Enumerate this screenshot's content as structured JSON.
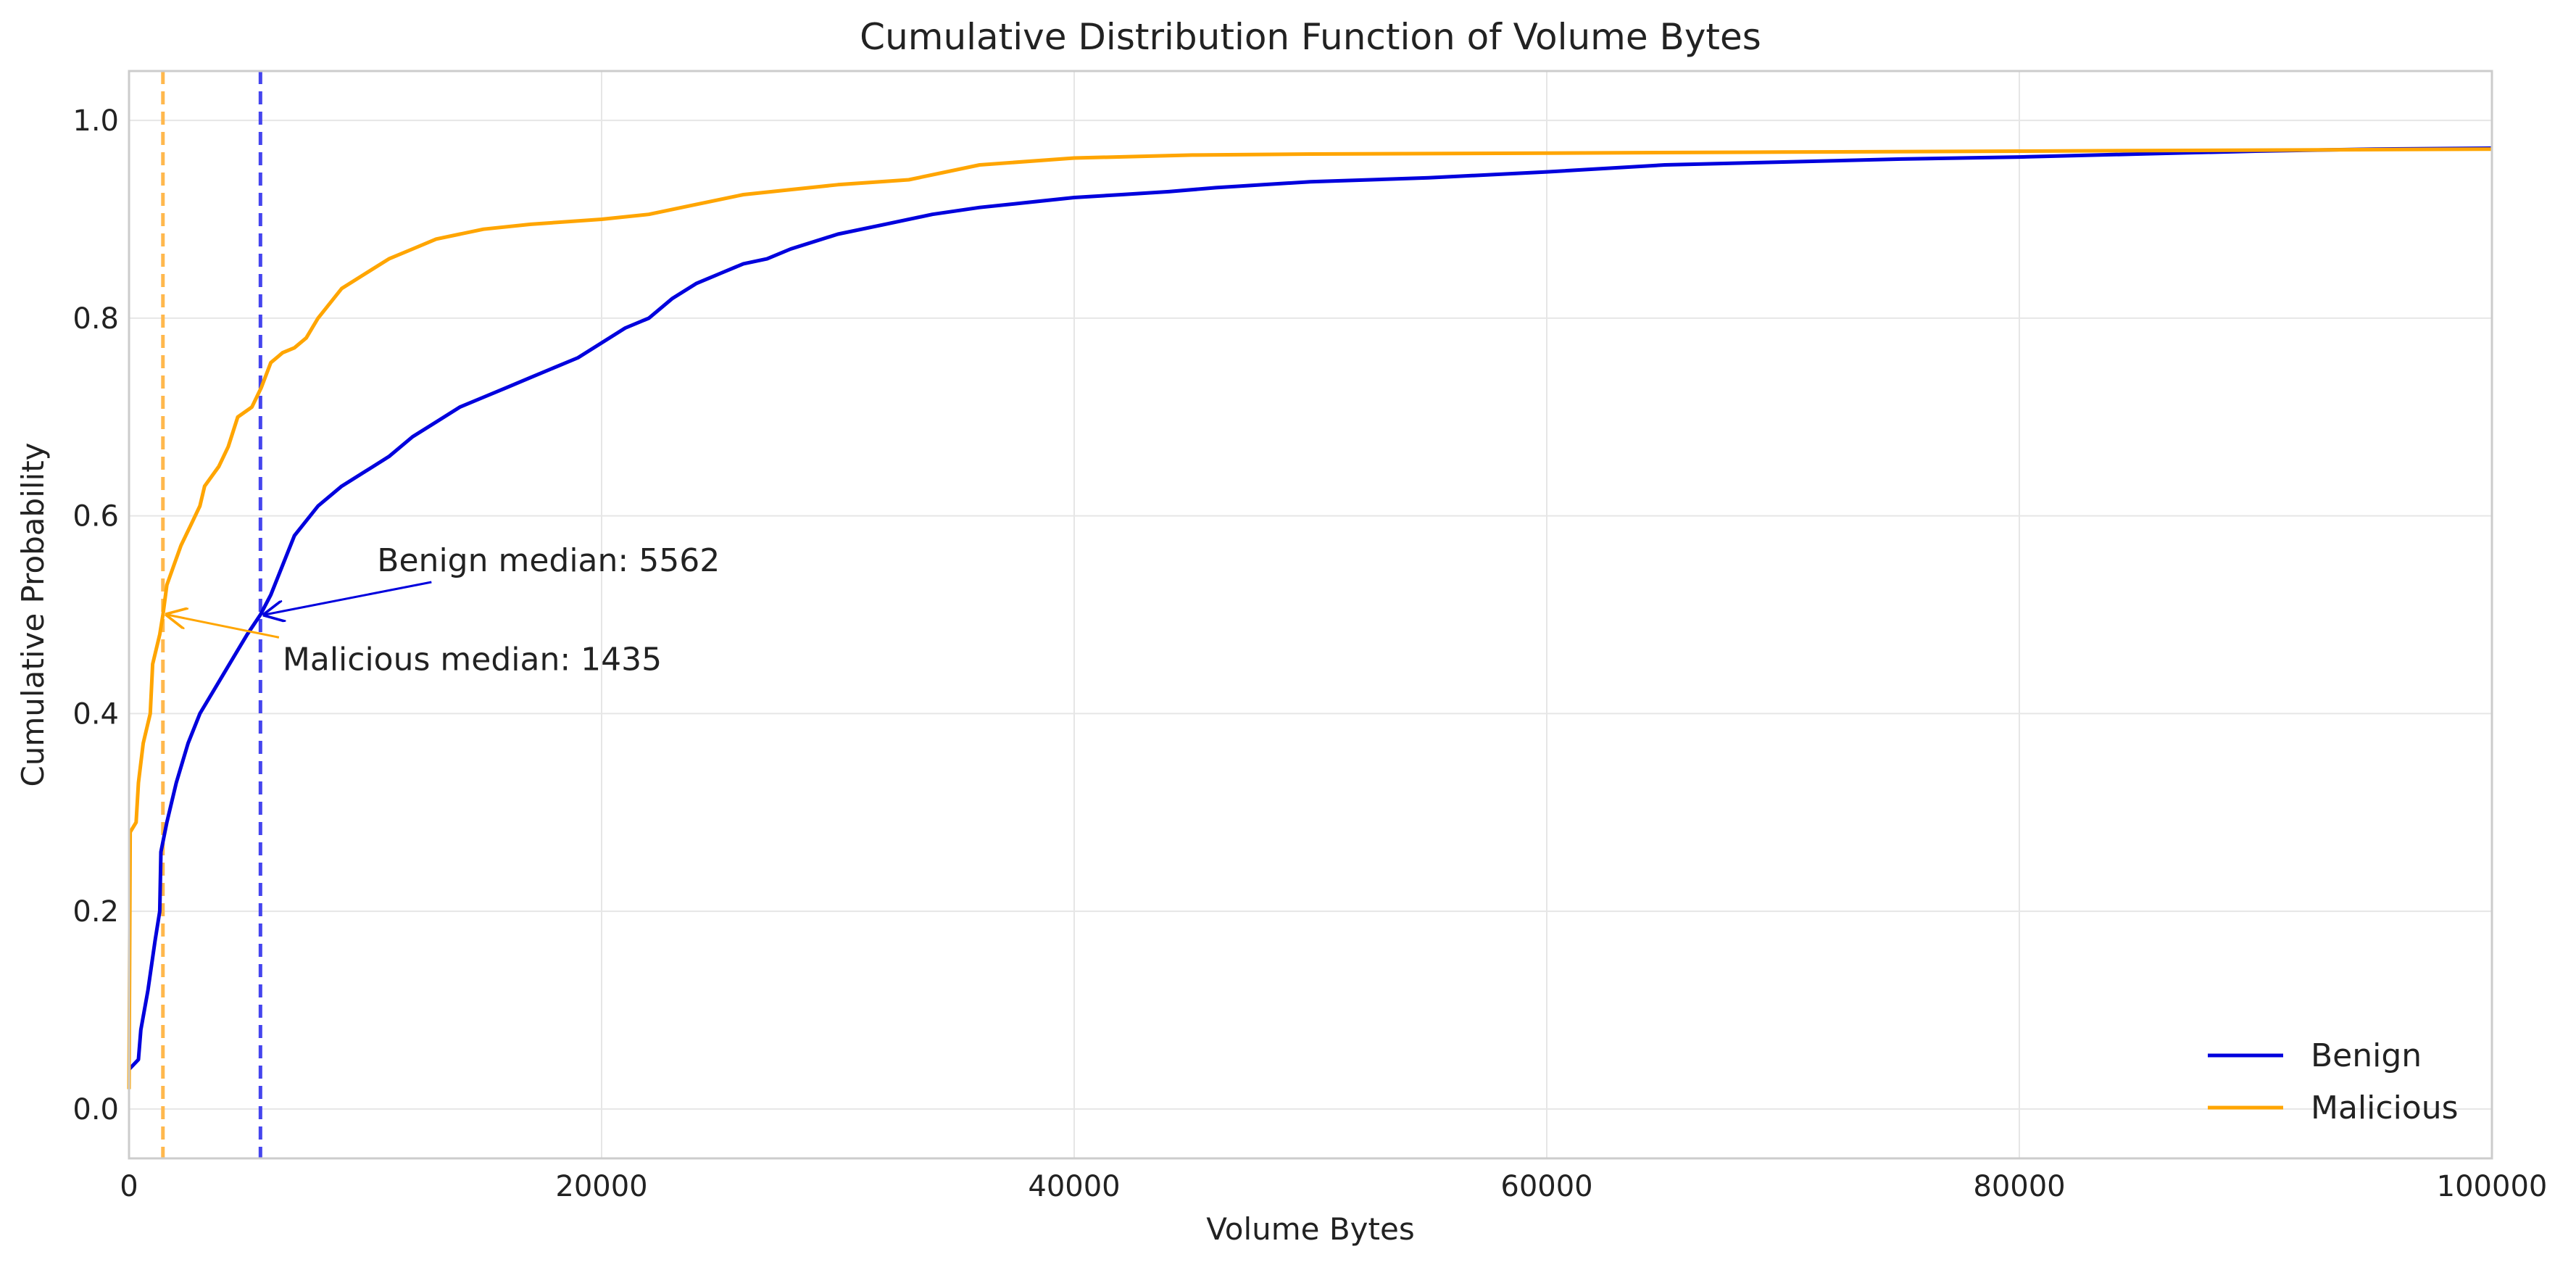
{
  "chart_data": {
    "type": "line",
    "title": "Cumulative Distribution Function of Volume Bytes",
    "xlabel": "Volume Bytes",
    "ylabel": "Cumulative Probability",
    "xlim": [
      0,
      100000
    ],
    "ylim": [
      -0.05,
      1.05
    ],
    "grid": true,
    "legend_position": "bottom-right",
    "x_ticks": [
      0,
      20000,
      40000,
      60000,
      80000,
      100000
    ],
    "y_ticks": [
      0.0,
      0.2,
      0.4,
      0.6,
      0.8,
      1.0
    ],
    "x_tick_labels": [
      "0",
      "20000",
      "40000",
      "60000",
      "80000",
      "100000"
    ],
    "y_tick_labels": [
      "0.0",
      "0.2",
      "0.4",
      "0.6",
      "0.8",
      "1.0"
    ],
    "series": [
      {
        "name": "Benign",
        "color": "#0000dd",
        "points": [
          [
            0,
            0.04
          ],
          [
            400,
            0.05
          ],
          [
            500,
            0.08
          ],
          [
            800,
            0.12
          ],
          [
            1100,
            0.17
          ],
          [
            1300,
            0.2
          ],
          [
            1350,
            0.26
          ],
          [
            1600,
            0.29
          ],
          [
            2000,
            0.33
          ],
          [
            2500,
            0.37
          ],
          [
            3000,
            0.4
          ],
          [
            3500,
            0.42
          ],
          [
            4000,
            0.44
          ],
          [
            4500,
            0.46
          ],
          [
            5000,
            0.48
          ],
          [
            5562,
            0.5
          ],
          [
            6000,
            0.52
          ],
          [
            6500,
            0.55
          ],
          [
            7000,
            0.58
          ],
          [
            8000,
            0.61
          ],
          [
            9000,
            0.63
          ],
          [
            10000,
            0.645
          ],
          [
            11000,
            0.66
          ],
          [
            12000,
            0.68
          ],
          [
            13000,
            0.695
          ],
          [
            14000,
            0.71
          ],
          [
            15000,
            0.72
          ],
          [
            16000,
            0.73
          ],
          [
            17000,
            0.74
          ],
          [
            18000,
            0.75
          ],
          [
            19000,
            0.76
          ],
          [
            20000,
            0.775
          ],
          [
            21000,
            0.79
          ],
          [
            22000,
            0.8
          ],
          [
            23000,
            0.82
          ],
          [
            24000,
            0.835
          ],
          [
            25000,
            0.845
          ],
          [
            26000,
            0.855
          ],
          [
            27000,
            0.86
          ],
          [
            28000,
            0.87
          ],
          [
            30000,
            0.885
          ],
          [
            32000,
            0.895
          ],
          [
            34000,
            0.905
          ],
          [
            36000,
            0.912
          ],
          [
            38000,
            0.917
          ],
          [
            40000,
            0.922
          ],
          [
            42000,
            0.925
          ],
          [
            44000,
            0.928
          ],
          [
            46000,
            0.932
          ],
          [
            48000,
            0.935
          ],
          [
            50000,
            0.938
          ],
          [
            55000,
            0.942
          ],
          [
            60000,
            0.948
          ],
          [
            65000,
            0.955
          ],
          [
            70000,
            0.958
          ],
          [
            75000,
            0.961
          ],
          [
            80000,
            0.963
          ],
          [
            85000,
            0.966
          ],
          [
            90000,
            0.969
          ],
          [
            95000,
            0.971
          ],
          [
            100000,
            0.972
          ]
        ]
      },
      {
        "name": "Malicious",
        "color": "#ffa500",
        "points": [
          [
            0,
            0.02
          ],
          [
            50,
            0.28
          ],
          [
            300,
            0.29
          ],
          [
            400,
            0.33
          ],
          [
            600,
            0.37
          ],
          [
            900,
            0.4
          ],
          [
            1000,
            0.45
          ],
          [
            1300,
            0.48
          ],
          [
            1435,
            0.5
          ],
          [
            1600,
            0.53
          ],
          [
            1900,
            0.55
          ],
          [
            2200,
            0.57
          ],
          [
            2600,
            0.59
          ],
          [
            3000,
            0.61
          ],
          [
            3200,
            0.63
          ],
          [
            3800,
            0.65
          ],
          [
            4200,
            0.67
          ],
          [
            4600,
            0.7
          ],
          [
            5200,
            0.71
          ],
          [
            5600,
            0.73
          ],
          [
            6000,
            0.755
          ],
          [
            6500,
            0.765
          ],
          [
            7000,
            0.77
          ],
          [
            7500,
            0.78
          ],
          [
            8000,
            0.8
          ],
          [
            9000,
            0.83
          ],
          [
            10000,
            0.845
          ],
          [
            11000,
            0.86
          ],
          [
            12000,
            0.87
          ],
          [
            13000,
            0.88
          ],
          [
            14000,
            0.885
          ],
          [
            15000,
            0.89
          ],
          [
            17000,
            0.895
          ],
          [
            20000,
            0.9
          ],
          [
            22000,
            0.905
          ],
          [
            24000,
            0.915
          ],
          [
            26000,
            0.925
          ],
          [
            28000,
            0.93
          ],
          [
            30000,
            0.935
          ],
          [
            33000,
            0.94
          ],
          [
            36000,
            0.955
          ],
          [
            40000,
            0.962
          ],
          [
            45000,
            0.965
          ],
          [
            50000,
            0.966
          ],
          [
            60000,
            0.967
          ],
          [
            70000,
            0.968
          ],
          [
            80000,
            0.969
          ],
          [
            90000,
            0.97
          ],
          [
            100000,
            0.971
          ]
        ]
      }
    ],
    "median_lines": [
      {
        "series": "Benign",
        "x": 5562,
        "color": "#4444ee"
      },
      {
        "series": "Malicious",
        "x": 1435,
        "color": "#ffb84d"
      }
    ],
    "annotations": [
      {
        "text": "Benign median: 5562",
        "point": [
          5562,
          0.5
        ],
        "text_pos": [
          10500,
          0.555
        ],
        "color": "#0000dd"
      },
      {
        "text": "Malicious median: 1435",
        "point": [
          1435,
          0.5
        ],
        "text_pos": [
          6500,
          0.455
        ],
        "color": "#ffa500"
      }
    ]
  }
}
